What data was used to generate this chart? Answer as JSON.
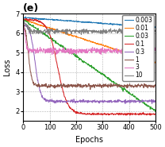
{
  "title": "(e)",
  "xlabel": "Epochs",
  "ylabel": "Loss",
  "xlim": [
    0,
    500
  ],
  "ylim": [
    1.5,
    7.0
  ],
  "yticks": [
    2,
    3,
    4,
    5,
    6,
    7
  ],
  "xticks": [
    0,
    100,
    200,
    300,
    400,
    500
  ],
  "learning_rates": [
    0.003,
    0.01,
    0.03,
    0.1,
    0.3,
    1,
    3,
    10
  ],
  "colors": {
    "0.003": "#1f77b4",
    "0.01": "#ff7f0e",
    "0.03": "#2ca02c",
    "0.1": "#d62728",
    "0.3": "#9467bd",
    "1": "#8c564b",
    "3": "#e377c2",
    "10": "#7f7f7f"
  },
  "legend_labels": [
    "0.003",
    "0.01",
    "0.03",
    "0.1",
    "0.3",
    "1",
    "3",
    "10"
  ]
}
